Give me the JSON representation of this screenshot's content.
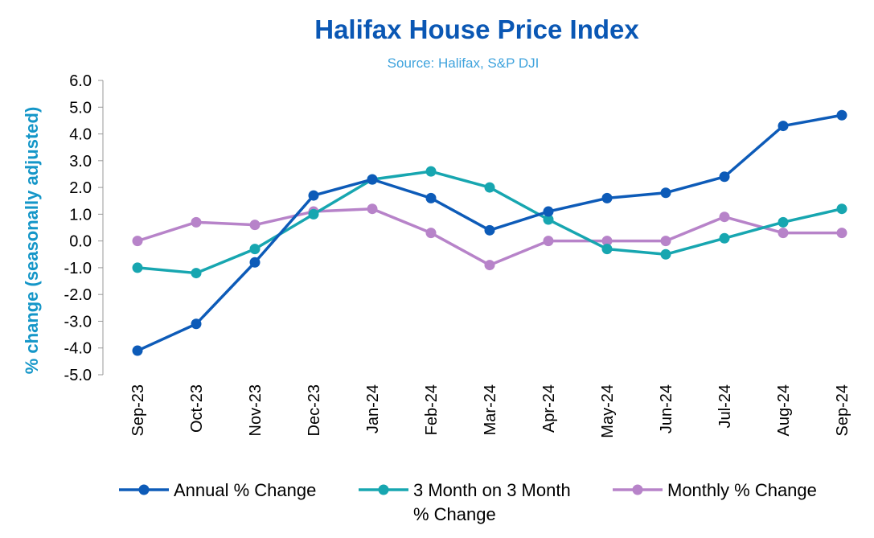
{
  "chart_data": {
    "type": "line",
    "title": "Halifax House Price Index",
    "subtitle": "Source: Halifax, S&P DJI",
    "xlabel": "",
    "ylabel": "% change (seasonally adjusted)",
    "ylim": [
      -5.0,
      6.0
    ],
    "yticks": [
      "6.0",
      "5.0",
      "4.0",
      "3.0",
      "2.0",
      "1.0",
      "0.0",
      "-1.0",
      "-2.0",
      "-3.0",
      "-4.0",
      "-5.0"
    ],
    "grid": false,
    "legend_position": "bottom",
    "categories": [
      "Sep-23",
      "Oct-23",
      "Nov-23",
      "Dec-23",
      "Jan-24",
      "Feb-24",
      "Mar-24",
      "Apr-24",
      "May-24",
      "Jun-24",
      "Jul-24",
      "Aug-24",
      "Sep-24"
    ],
    "series": [
      {
        "name": "Annual % Change",
        "color": "#0d5bb8",
        "values": [
          -4.1,
          -3.1,
          -0.8,
          1.7,
          2.3,
          1.6,
          0.4,
          1.1,
          1.6,
          1.8,
          2.4,
          4.3,
          4.7
        ]
      },
      {
        "name": "3 Month on 3 Month % Change",
        "legend_lines": [
          "3 Month on 3 Month",
          "% Change"
        ],
        "color": "#17a6b0",
        "values": [
          -1.0,
          -1.2,
          -0.3,
          1.0,
          2.3,
          2.6,
          2.0,
          0.8,
          -0.3,
          -0.5,
          0.1,
          0.7,
          1.2
        ]
      },
      {
        "name": "Monthly % Change",
        "color": "#b783c9",
        "values": [
          0.0,
          0.7,
          0.6,
          1.1,
          1.2,
          0.3,
          -0.9,
          0.0,
          0.0,
          0.0,
          0.9,
          0.3,
          0.3
        ]
      }
    ]
  }
}
